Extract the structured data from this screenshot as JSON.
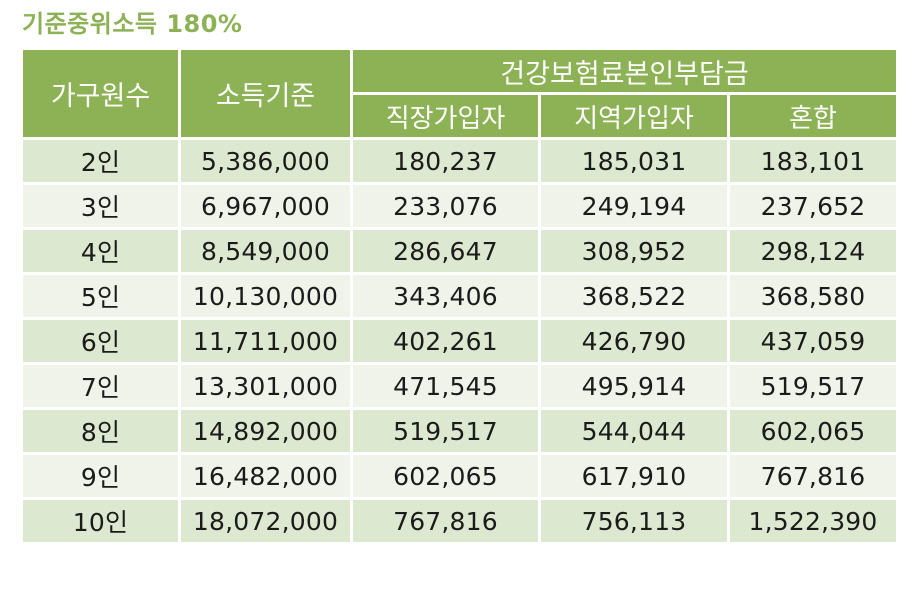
{
  "title": "기준중위소득 180%",
  "table": {
    "headers": {
      "members": "가구원수",
      "income": "소득기준",
      "premium_group": "건강보험료본인부담금",
      "employee": "직장가입자",
      "regional": "지역가입자",
      "mixed": "혼합"
    },
    "rows": [
      {
        "members": "2인",
        "income": "5,386,000",
        "employee": "180,237",
        "regional": "185,031",
        "mixed": "183,101"
      },
      {
        "members": "3인",
        "income": "6,967,000",
        "employee": "233,076",
        "regional": "249,194",
        "mixed": "237,652"
      },
      {
        "members": "4인",
        "income": "8,549,000",
        "employee": "286,647",
        "regional": "308,952",
        "mixed": "298,124"
      },
      {
        "members": "5인",
        "income": "10,130,000",
        "employee": "343,406",
        "regional": "368,522",
        "mixed": "368,580"
      },
      {
        "members": "6인",
        "income": "11,711,000",
        "employee": "402,261",
        "regional": "426,790",
        "mixed": "437,059"
      },
      {
        "members": "7인",
        "income": "13,301,000",
        "employee": "471,545",
        "regional": "495,914",
        "mixed": "519,517"
      },
      {
        "members": "8인",
        "income": "14,892,000",
        "employee": "519,517",
        "regional": "544,044",
        "mixed": "602,065"
      },
      {
        "members": "9인",
        "income": "16,482,000",
        "employee": "602,065",
        "regional": "617,910",
        "mixed": "767,816"
      },
      {
        "members": "10인",
        "income": "18,072,000",
        "employee": "767,816",
        "regional": "756,113",
        "mixed": "1,522,390"
      }
    ]
  },
  "colors": {
    "header_green": "#8db255",
    "row_odd": "#dde8d0",
    "row_even": "#eff3ea"
  }
}
